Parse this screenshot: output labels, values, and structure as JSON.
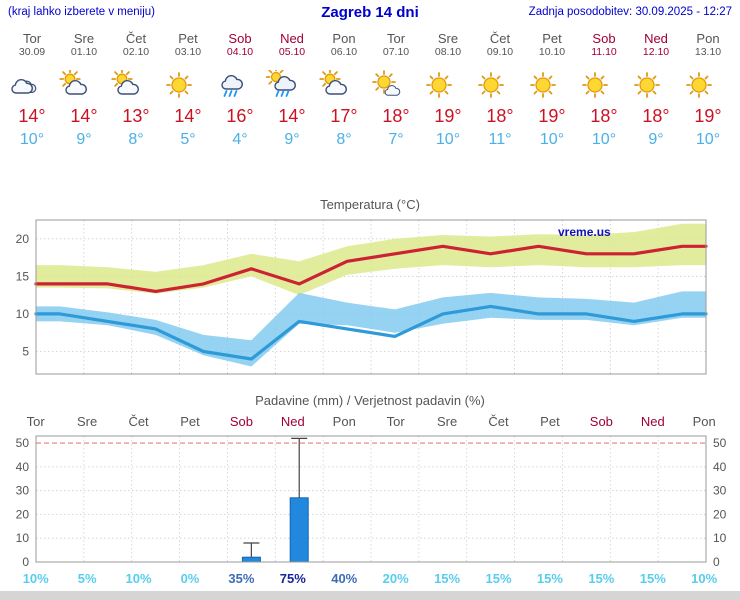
{
  "header": {
    "left_note": "(kraj lahko izberete v meniju)",
    "title": "Zagreb 14 dni",
    "updated": "Zadnja posodobitev: 30.09.2025 - 12:27"
  },
  "colors": {
    "header_blue": "#0000cc",
    "weekday_gray": "#555555",
    "weekend_red": "#a00034",
    "tmax_red": "#cc1122",
    "tmin_blue": "#4ab0e8",
    "prob_low": "#58cdee",
    "prob_mid": "#3b6db4",
    "prob_high": "#16249d",
    "watermark_blue": "#1111bb",
    "bar_blue": "#2288dd"
  },
  "days": [
    {
      "name": "Tor",
      "date": "30.09",
      "weekend": false,
      "icon": "cloudy",
      "tmax_label": "14°",
      "tmin_label": "10°",
      "prob_label": "10%",
      "prob_level": "low"
    },
    {
      "name": "Sre",
      "date": "01.10",
      "weekend": false,
      "icon": "partly-cloudy",
      "tmax_label": "14°",
      "tmin_label": "9°",
      "prob_label": "5%",
      "prob_level": "low"
    },
    {
      "name": "Čet",
      "date": "02.10",
      "weekend": false,
      "icon": "partly-cloudy",
      "tmax_label": "13°",
      "tmin_label": "8°",
      "prob_label": "10%",
      "prob_level": "low"
    },
    {
      "name": "Pet",
      "date": "03.10",
      "weekend": false,
      "icon": "sunny",
      "tmax_label": "14°",
      "tmin_label": "5°",
      "prob_label": "0%",
      "prob_level": "low"
    },
    {
      "name": "Sob",
      "date": "04.10",
      "weekend": true,
      "icon": "rain",
      "tmax_label": "16°",
      "tmin_label": "4°",
      "prob_label": "35%",
      "prob_level": "mid"
    },
    {
      "name": "Ned",
      "date": "05.10",
      "weekend": true,
      "icon": "rain-sun",
      "tmax_label": "14°",
      "tmin_label": "9°",
      "prob_label": "75%",
      "prob_level": "high"
    },
    {
      "name": "Pon",
      "date": "06.10",
      "weekend": false,
      "icon": "partly-cloudy",
      "tmax_label": "17°",
      "tmin_label": "8°",
      "prob_label": "40%",
      "prob_level": "mid"
    },
    {
      "name": "Tor",
      "date": "07.10",
      "weekend": false,
      "icon": "mostly-sunny",
      "tmax_label": "18°",
      "tmin_label": "7°",
      "prob_label": "20%",
      "prob_level": "low"
    },
    {
      "name": "Sre",
      "date": "08.10",
      "weekend": false,
      "icon": "sunny",
      "tmax_label": "19°",
      "tmin_label": "10°",
      "prob_label": "15%",
      "prob_level": "low"
    },
    {
      "name": "Čet",
      "date": "09.10",
      "weekend": false,
      "icon": "sunny",
      "tmax_label": "18°",
      "tmin_label": "11°",
      "prob_label": "15%",
      "prob_level": "low"
    },
    {
      "name": "Pet",
      "date": "10.10",
      "weekend": false,
      "icon": "sunny",
      "tmax_label": "19°",
      "tmin_label": "10°",
      "prob_label": "15%",
      "prob_level": "low"
    },
    {
      "name": "Sob",
      "date": "11.10",
      "weekend": true,
      "icon": "sunny",
      "tmax_label": "18°",
      "tmin_label": "10°",
      "prob_label": "15%",
      "prob_level": "low"
    },
    {
      "name": "Ned",
      "date": "12.10",
      "weekend": true,
      "icon": "sunny",
      "tmax_label": "18°",
      "tmin_label": "9°",
      "prob_label": "15%",
      "prob_level": "low"
    },
    {
      "name": "Pon",
      "date": "13.10",
      "weekend": false,
      "icon": "sunny",
      "tmax_label": "19°",
      "tmin_label": "10°",
      "prob_label": "10%",
      "prob_level": "low"
    }
  ],
  "chart_data": [
    {
      "type": "line",
      "title": "Temperatura (°C)",
      "categories": [
        "Tor 30.09",
        "Sre 01.10",
        "Čet 02.10",
        "Pet 03.10",
        "Sob 04.10",
        "Ned 05.10",
        "Pon 06.10",
        "Tor 07.10",
        "Sre 08.10",
        "Čet 09.10",
        "Pet 10.10",
        "Sob 11.10",
        "Ned 12.10",
        "Pon 13.10"
      ],
      "ylim": [
        2,
        22.5
      ],
      "yticks": [
        5,
        10,
        15,
        20
      ],
      "grid": true,
      "legend_position": "none",
      "watermark": "vreme.us",
      "series": [
        {
          "name": "max-temperature",
          "color": "#cc2233",
          "values": [
            14,
            14,
            13,
            14,
            16,
            14,
            17,
            18,
            19,
            18,
            19,
            18,
            18,
            19
          ]
        },
        {
          "name": "min-temperature",
          "color": "#2e9ad8",
          "values": [
            10,
            9,
            8,
            5,
            4,
            9,
            8,
            7,
            10,
            11,
            10,
            10,
            9,
            10
          ]
        }
      ],
      "bands": [
        {
          "name": "max-temperature-range",
          "color": "#dcea8c",
          "opacity": 0.85,
          "upper": [
            16.5,
            16.2,
            15.6,
            16.5,
            18,
            17,
            19,
            20,
            20.5,
            20.3,
            20.6,
            20.5,
            20.9,
            22
          ],
          "lower": [
            13.5,
            13.4,
            12.7,
            13.5,
            15,
            12.5,
            15.2,
            16,
            16.5,
            16.2,
            16.5,
            16.2,
            16.2,
            16.5
          ]
        },
        {
          "name": "min-temperature-range",
          "color": "#7cc8ef",
          "opacity": 0.8,
          "upper": [
            11,
            10.2,
            9.2,
            7.2,
            6.5,
            12.8,
            11.5,
            10.6,
            12.2,
            12.8,
            12.2,
            12,
            11.5,
            13
          ],
          "lower": [
            9,
            8.5,
            7.2,
            4.5,
            3,
            8.7,
            8.5,
            7.5,
            8.7,
            9.5,
            9.2,
            9.2,
            8.5,
            9.5
          ]
        }
      ]
    },
    {
      "type": "bar",
      "title": "Padavine (mm) / Verjetnost padavin (%)",
      "categories": [
        "Tor",
        "Sre",
        "Čet",
        "Pet",
        "Sob",
        "Ned",
        "Pon",
        "Tor",
        "Sre",
        "Čet",
        "Pet",
        "Sob",
        "Ned",
        "Pon"
      ],
      "ylim": [
        0,
        53
      ],
      "yticks": [
        0,
        10,
        20,
        30,
        40,
        50
      ],
      "bar_color": "#2288dd",
      "values": [
        0,
        0,
        0,
        0,
        2,
        27,
        0,
        0,
        0,
        0,
        0,
        0,
        0,
        0
      ],
      "whisker_max": [
        0,
        0,
        0,
        0,
        8,
        52,
        0,
        0,
        0,
        0,
        0,
        0,
        0,
        0
      ],
      "probabilities_pct": [
        10,
        5,
        10,
        0,
        35,
        75,
        40,
        20,
        15,
        15,
        15,
        15,
        15,
        10
      ]
    }
  ]
}
